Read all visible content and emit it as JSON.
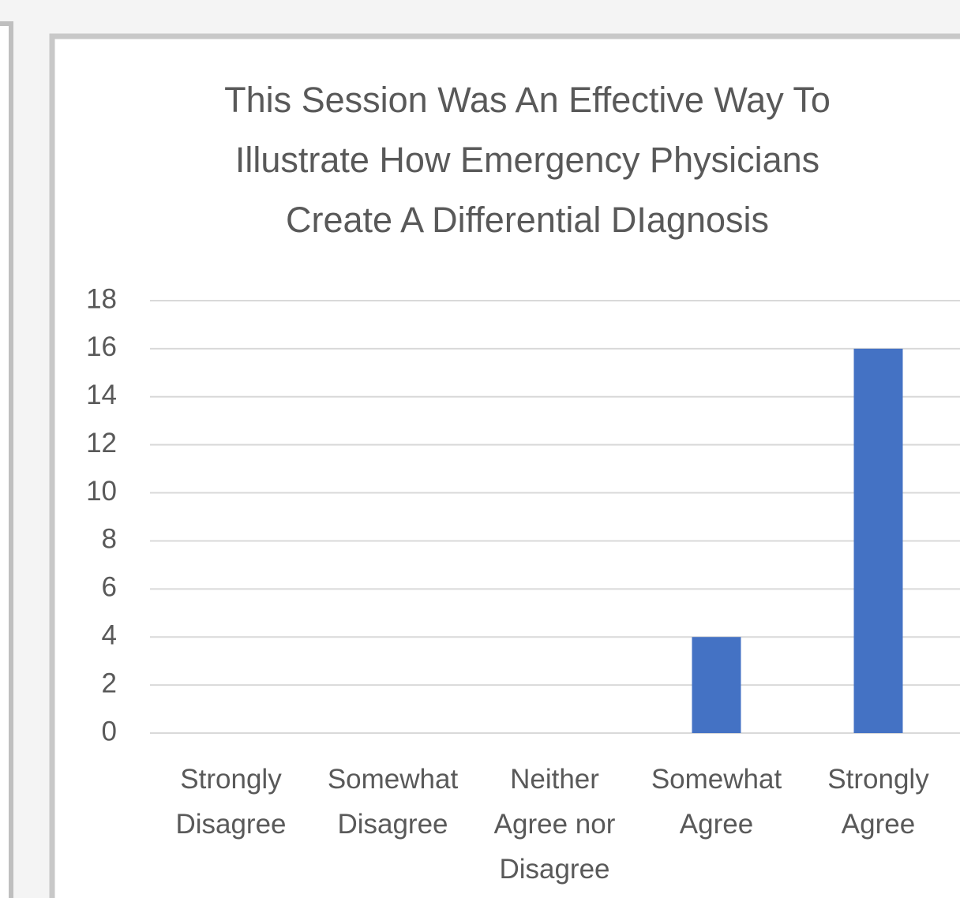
{
  "chart_data": {
    "type": "bar",
    "title": "This Session Was An Effective Way To Illustrate How Emergency Physicians Create A Differential DIagnosis",
    "categories": [
      "Strongly Disagree",
      "Somewhat Disagree",
      "Neither Agree nor Disagree",
      "Somewhat Agree",
      "Strongly Agree"
    ],
    "values": [
      0,
      0,
      0,
      4,
      16
    ],
    "color": "#4472c4",
    "ylim": [
      0,
      18
    ],
    "yticks": [
      0,
      2,
      4,
      6,
      8,
      10,
      12,
      14,
      16,
      18
    ],
    "grid": true
  }
}
